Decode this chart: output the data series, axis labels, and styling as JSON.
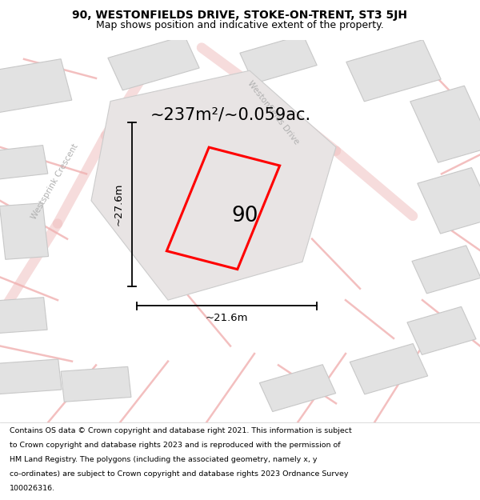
{
  "title": "90, WESTONFIELDS DRIVE, STOKE-ON-TRENT, ST3 5JH",
  "subtitle": "Map shows position and indicative extent of the property.",
  "footer_lines": [
    "Contains OS data © Crown copyright and database right 2021. This information is subject",
    "to Crown copyright and database rights 2023 and is reproduced with the permission of",
    "HM Land Registry. The polygons (including the associated geometry, namely x, y",
    "co-ordinates) are subject to Crown copyright and database rights 2023 Ordnance Survey",
    "100026316."
  ],
  "area_label": "~237m²/~0.059ac.",
  "property_number": "90",
  "dim_width": "~21.6m",
  "dim_height": "~27.6m",
  "map_bg": "#f2eded",
  "plot_outline_color": "#ff0000",
  "building_color": "#e2e2e2",
  "building_edge_color": "#c8c8c8",
  "street_text_color": "#b0b0b0",
  "title_fontsize": 10,
  "subtitle_fontsize": 9,
  "footer_fontsize": 6.8,
  "area_label_fontsize": 15
}
